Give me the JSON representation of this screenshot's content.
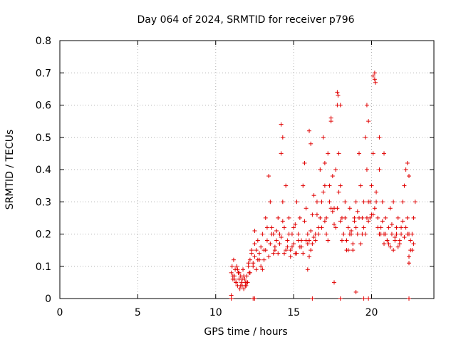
{
  "chart_data": {
    "type": "scatter",
    "title": "Day 064 of 2024, SRMTID for receiver p796",
    "xlabel": "GPS time / hours",
    "ylabel": "SRMTID / TECUs",
    "xlim": [
      0,
      24
    ],
    "ylim": [
      0,
      0.8
    ],
    "xticks": [
      "0",
      "5",
      "10",
      "15",
      "20"
    ],
    "yticks": [
      "0",
      "0.1",
      "0.2",
      "0.3",
      "0.4",
      "0.5",
      "0.6",
      "0.7",
      "0.8"
    ],
    "xtick_values": [
      0,
      5,
      10,
      15,
      20
    ],
    "ytick_values": [
      0,
      0.1,
      0.2,
      0.3,
      0.4,
      0.5,
      0.6,
      0.7,
      0.8
    ],
    "grid": true,
    "marker": "+",
    "series_color": "#e00000",
    "series": [
      {
        "name": "SRMTID",
        "x": [
          11.0,
          11.05,
          11.1,
          11.15,
          11.2,
          11.25,
          11.3,
          11.35,
          11.4,
          11.45,
          11.5,
          11.55,
          11.6,
          11.65,
          11.7,
          11.75,
          11.8,
          11.85,
          11.9,
          11.95,
          12.0,
          12.05,
          12.1,
          12.15,
          12.2,
          12.3,
          12.4,
          12.5,
          12.6,
          12.7,
          12.8,
          12.9,
          13.0,
          13.1,
          13.2,
          13.3,
          13.4,
          13.5,
          13.6,
          13.7,
          13.8,
          13.9,
          14.0,
          14.1,
          14.2,
          14.3,
          14.4,
          14.5,
          14.6,
          14.7,
          14.8,
          14.9,
          15.0,
          15.1,
          15.2,
          15.3,
          15.4,
          15.5,
          15.6,
          15.7,
          15.8,
          15.9,
          16.0,
          16.1,
          16.2,
          16.3,
          16.4,
          16.5,
          16.6,
          16.7,
          16.8,
          16.9,
          17.0,
          17.1,
          17.2,
          17.3,
          17.4,
          17.5,
          17.6,
          17.7,
          17.8,
          17.9,
          18.0,
          18.1,
          18.2,
          18.3,
          18.4,
          18.5,
          18.6,
          18.7,
          18.8,
          18.9,
          19.0,
          19.1,
          19.2,
          19.3,
          19.4,
          19.5,
          19.6,
          19.7,
          19.8,
          19.9,
          20.0,
          20.1,
          20.2,
          20.3,
          20.4,
          20.5,
          20.6,
          20.7,
          20.8,
          20.9,
          21.0,
          21.1,
          21.2,
          21.3,
          21.4,
          21.5,
          21.6,
          21.7,
          21.8,
          21.9,
          22.0,
          22.1,
          22.2,
          22.3,
          22.4,
          22.5,
          22.6,
          22.7,
          22.8,
          11.1,
          11.3,
          11.5,
          11.7,
          11.9,
          12.1,
          12.3,
          12.5,
          12.7,
          12.9,
          13.1,
          13.3,
          13.5,
          13.7,
          13.9,
          14.1,
          14.3,
          14.5,
          14.7,
          14.9,
          15.1,
          15.3,
          15.5,
          15.7,
          15.9,
          16.1,
          16.3,
          16.5,
          16.7,
          16.9,
          17.1,
          17.3,
          17.5,
          17.7,
          17.9,
          18.1,
          18.3,
          18.5,
          18.7,
          18.9,
          19.1,
          19.3,
          19.5,
          19.7,
          19.9,
          20.1,
          20.3,
          20.5,
          20.7,
          20.9,
          21.1,
          21.3,
          21.5,
          21.7,
          21.9,
          22.1,
          22.3,
          22.5,
          22.7,
          11.2,
          11.4,
          11.6,
          11.8,
          12.0,
          12.2,
          12.4,
          12.6,
          12.8,
          13.0,
          13.2,
          13.4,
          13.6,
          13.8,
          14.0,
          14.2,
          14.4,
          14.6,
          14.8,
          15.0,
          15.2,
          15.4,
          15.6,
          15.8,
          16.0,
          16.2,
          16.4,
          16.6,
          16.8,
          17.0,
          17.2,
          17.4,
          17.6,
          17.8,
          18.0,
          18.2,
          18.4,
          18.6,
          18.8,
          19.0,
          19.2,
          19.4,
          19.6,
          19.8,
          20.0,
          20.2,
          20.4,
          20.6,
          20.8,
          21.0,
          21.2,
          21.4,
          21.6,
          21.8,
          22.0,
          22.2,
          22.4,
          22.6,
          14.2,
          14.3,
          16.0,
          16.1,
          17.0,
          17.4,
          17.8,
          17.85,
          18.0,
          19.7,
          19.8,
          20.1,
          20.2,
          20.25,
          20.5,
          20.8,
          22.3,
          22.4,
          11.0,
          12.5,
          15.9,
          17.6,
          19.0,
          20.5,
          22.4,
          11.0,
          12.4,
          12.5,
          16.2,
          18.0,
          19.5,
          19.8,
          22.4
        ],
        "y": [
          0.08,
          0.1,
          0.06,
          0.12,
          0.07,
          0.09,
          0.05,
          0.1,
          0.04,
          0.08,
          0.06,
          0.03,
          0.07,
          0.05,
          0.04,
          0.09,
          0.03,
          0.06,
          0.05,
          0.04,
          0.07,
          0.05,
          0.1,
          0.08,
          0.12,
          0.15,
          0.1,
          0.13,
          0.09,
          0.18,
          0.14,
          0.1,
          0.2,
          0.12,
          0.25,
          0.18,
          0.38,
          0.3,
          0.22,
          0.2,
          0.16,
          0.18,
          0.25,
          0.2,
          0.45,
          0.3,
          0.22,
          0.35,
          0.18,
          0.25,
          0.15,
          0.2,
          0.22,
          0.14,
          0.3,
          0.2,
          0.25,
          0.18,
          0.35,
          0.42,
          0.28,
          0.2,
          0.18,
          0.15,
          0.26,
          0.32,
          0.2,
          0.3,
          0.22,
          0.4,
          0.3,
          0.5,
          0.35,
          0.25,
          0.45,
          0.3,
          0.55,
          0.38,
          0.28,
          0.22,
          0.6,
          0.45,
          0.35,
          0.25,
          0.2,
          0.3,
          0.18,
          0.22,
          0.28,
          0.2,
          0.15,
          0.25,
          0.3,
          0.2,
          0.45,
          0.35,
          0.25,
          0.3,
          0.5,
          0.4,
          0.3,
          0.25,
          0.35,
          0.45,
          0.68,
          0.3,
          0.25,
          0.4,
          0.22,
          0.3,
          0.2,
          0.25,
          0.18,
          0.22,
          0.28,
          0.2,
          0.3,
          0.18,
          0.22,
          0.25,
          0.18,
          0.2,
          0.3,
          0.35,
          0.4,
          0.25,
          0.2,
          0.15,
          0.2,
          0.25,
          0.3,
          0.07,
          0.05,
          0.08,
          0.06,
          0.04,
          0.11,
          0.14,
          0.17,
          0.12,
          0.16,
          0.15,
          0.22,
          0.17,
          0.14,
          0.21,
          0.17,
          0.24,
          0.15,
          0.2,
          0.16,
          0.23,
          0.18,
          0.16,
          0.24,
          0.17,
          0.21,
          0.19,
          0.26,
          0.25,
          0.33,
          0.2,
          0.35,
          0.27,
          0.4,
          0.33,
          0.18,
          0.25,
          0.15,
          0.21,
          0.24,
          0.27,
          0.17,
          0.22,
          0.25,
          0.3,
          0.26,
          0.33,
          0.2,
          0.24,
          0.2,
          0.17,
          0.23,
          0.19,
          0.16,
          0.22,
          0.19,
          0.2,
          0.18,
          0.17,
          0.06,
          0.09,
          0.04,
          0.07,
          0.05,
          0.08,
          0.11,
          0.15,
          0.12,
          0.09,
          0.15,
          0.13,
          0.2,
          0.15,
          0.14,
          0.19,
          0.14,
          0.16,
          0.13,
          0.17,
          0.14,
          0.16,
          0.14,
          0.18,
          0.13,
          0.17,
          0.18,
          0.2,
          0.22,
          0.24,
          0.18,
          0.28,
          0.23,
          0.28,
          0.24,
          0.2,
          0.15,
          0.2,
          0.17,
          0.22,
          0.25,
          0.2,
          0.2,
          0.24,
          0.26,
          0.28,
          0.22,
          0.2,
          0.17,
          0.18,
          0.16,
          0.15,
          0.2,
          0.17,
          0.24,
          0.22,
          0.13,
          0.15,
          0.54,
          0.5,
          0.52,
          0.48,
          0.42,
          0.56,
          0.64,
          0.63,
          0.6,
          0.6,
          0.55,
          0.69,
          0.7,
          0.67,
          0.5,
          0.45,
          0.42,
          0.38,
          0.01,
          0.21,
          0.09,
          0.05,
          0.02,
          0.2,
          0.11,
          0.0,
          0.0,
          0.0,
          0.0,
          0.0,
          0.0,
          0.0,
          0.0
        ]
      }
    ]
  }
}
